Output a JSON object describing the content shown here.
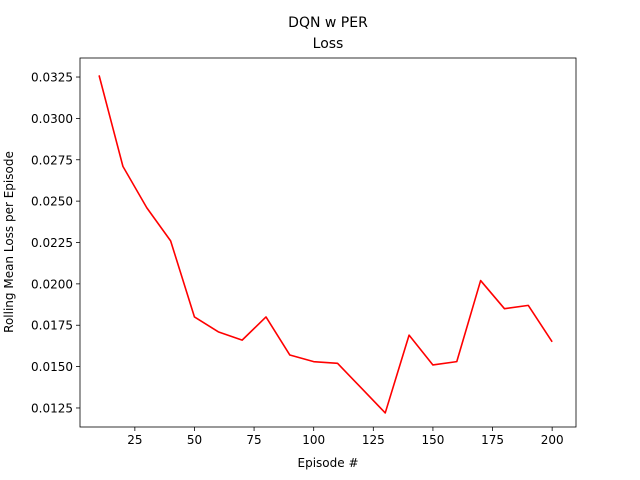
{
  "chart_data": {
    "type": "line",
    "title": "DQN w PER",
    "subtitle": "Loss",
    "xlabel": "Episode #",
    "ylabel": "Rolling Mean Loss per Episode",
    "xlim": [
      2,
      210
    ],
    "ylim": [
      0.01135,
      0.03365
    ],
    "xticks": [
      25,
      50,
      75,
      100,
      125,
      150,
      175,
      200
    ],
    "yticks": [
      0.0125,
      0.015,
      0.0175,
      0.02,
      0.0225,
      0.025,
      0.0275,
      0.03,
      0.0325
    ],
    "ytick_labels": [
      "0.0125",
      "0.0150",
      "0.0175",
      "0.0200",
      "0.0225",
      "0.0250",
      "0.0275",
      "0.0300",
      "0.0325"
    ],
    "grid": false,
    "series": [
      {
        "color": "#ff0000",
        "x": [
          10,
          20,
          30,
          40,
          50,
          60,
          70,
          80,
          90,
          100,
          110,
          120,
          130,
          140,
          150,
          160,
          170,
          180,
          190,
          200
        ],
        "values": [
          0.0326,
          0.0271,
          0.0246,
          0.0226,
          0.018,
          0.0171,
          0.0166,
          0.018,
          0.0157,
          0.0153,
          0.0152,
          0.0137,
          0.0122,
          0.0169,
          0.0151,
          0.0153,
          0.0202,
          0.0185,
          0.0187,
          0.0165
        ]
      }
    ]
  }
}
